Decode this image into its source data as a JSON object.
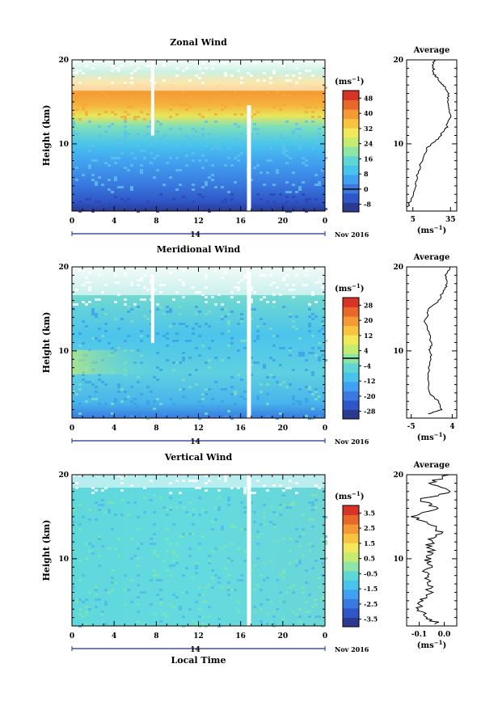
{
  "chart_data": [
    {
      "type": "heatmap",
      "title": "Zonal Wind",
      "xlabel": "",
      "ylabel": "Height (km)",
      "x_ticks": [
        "0",
        "4",
        "8",
        "12",
        "16",
        "20",
        "0"
      ],
      "x_range": [
        0,
        24
      ],
      "y_ticks": [
        "10",
        "20"
      ],
      "y_range": [
        2,
        20
      ],
      "date_day": "14",
      "date_month": "Nov 2016",
      "colorbar_unit": "(ms",
      "colorbar_unit_exp": "−1",
      "colorbar_unit_close": ")",
      "colorbar_ticks": [
        "48",
        "40",
        "32",
        "24",
        "16",
        "8",
        "0",
        "-8"
      ],
      "colorbar_range": [
        -12,
        52
      ],
      "colorbar_colors": [
        "#2b3a8f",
        "#2f55c6",
        "#3a7ae0",
        "#41a0ef",
        "#48c4ec",
        "#5fd6d6",
        "#8ee5a6",
        "#c5ec70",
        "#f2e85a",
        "#f8c440",
        "#f39a34",
        "#e8672b",
        "#d83327"
      ],
      "profile_title": "Average",
      "profile_xticks": [
        "5",
        "35"
      ],
      "profile_xrange": [
        0,
        40
      ],
      "profile_xlabel": "(ms",
      "profile_xlabel_exp": "−1",
      "profile_xlabel_close": ")",
      "profile_points": [
        [
          1,
          2.5
        ],
        [
          4,
          3.5
        ],
        [
          7,
          5
        ],
        [
          9,
          6.5
        ],
        [
          12,
          8
        ],
        [
          16,
          9.5
        ],
        [
          23,
          10.3
        ],
        [
          28,
          11.2
        ],
        [
          32,
          12
        ],
        [
          35,
          13.5
        ],
        [
          33,
          15
        ],
        [
          33,
          16
        ],
        [
          30,
          16.8
        ],
        [
          26,
          17.5
        ],
        [
          22,
          18.3
        ],
        [
          21,
          19.2
        ],
        [
          22,
          20
        ]
      ]
    },
    {
      "type": "heatmap",
      "title": "Meridional Wind",
      "xlabel": "",
      "ylabel": "Height (km)",
      "x_ticks": [
        "0",
        "4",
        "8",
        "12",
        "16",
        "20",
        "0"
      ],
      "x_range": [
        0,
        24
      ],
      "y_ticks": [
        "10",
        "20"
      ],
      "y_range": [
        2,
        20
      ],
      "date_day": "14",
      "date_month": "Nov 2016",
      "colorbar_unit": "(ms",
      "colorbar_unit_exp": "−1",
      "colorbar_unit_close": ")",
      "colorbar_ticks": [
        "28",
        "20",
        "12",
        "4",
        "-4",
        "-12",
        "-20",
        "-28"
      ],
      "colorbar_range": [
        -32,
        32
      ],
      "colorbar_colors": [
        "#2b3a8f",
        "#2f55c6",
        "#3a7ae0",
        "#41a0ef",
        "#48c4ec",
        "#5fd6d6",
        "#8ee5a6",
        "#c5ec70",
        "#f2e85a",
        "#f8c440",
        "#f39a34",
        "#e8672b",
        "#d83327"
      ],
      "profile_title": "Average",
      "profile_xticks": [
        "-5",
        "4"
      ],
      "profile_xrange": [
        -6,
        5
      ],
      "profile_xlabel": "(ms",
      "profile_xlabel_exp": "−1",
      "profile_xlabel_close": ")",
      "profile_points": [
        [
          -1,
          2.5
        ],
        [
          1.5,
          3
        ],
        [
          1,
          4
        ],
        [
          -1,
          5
        ],
        [
          -1.5,
          7
        ],
        [
          -0.5,
          9
        ],
        [
          -1,
          10
        ],
        [
          -0.5,
          11
        ],
        [
          -1,
          12
        ],
        [
          -2,
          13.5
        ],
        [
          -1,
          15
        ],
        [
          1,
          16
        ],
        [
          2,
          17
        ],
        [
          3,
          18
        ],
        [
          2.5,
          19
        ],
        [
          3.5,
          20
        ]
      ]
    },
    {
      "type": "heatmap",
      "title": "Vertical Wind",
      "xlabel": "Local Time",
      "ylabel": "Height (km)",
      "x_ticks": [
        "0",
        "4",
        "8",
        "12",
        "16",
        "20",
        "0"
      ],
      "x_range": [
        0,
        24
      ],
      "y_ticks": [
        "10",
        "20"
      ],
      "y_range": [
        2,
        20
      ],
      "date_day": "14",
      "date_month": "Nov 2016",
      "colorbar_unit": "(ms",
      "colorbar_unit_exp": "−1",
      "colorbar_unit_close": ")",
      "colorbar_ticks": [
        "3.5",
        "2.5",
        "1.5",
        "0.5",
        "-0.5",
        "-1.5",
        "-2.5",
        "-3.5"
      ],
      "colorbar_range": [
        -4,
        4
      ],
      "colorbar_colors": [
        "#2b3a8f",
        "#2f55c6",
        "#3a7ae0",
        "#41a0ef",
        "#48c4ec",
        "#5fd6d6",
        "#8ee5a6",
        "#c5ec70",
        "#f2e85a",
        "#f8c440",
        "#f39a34",
        "#e8672b",
        "#d83327"
      ],
      "profile_title": "Average",
      "profile_xticks": [
        "-0.1",
        "0.0"
      ],
      "profile_xrange": [
        -0.15,
        0.05
      ],
      "profile_xlabel": "(ms",
      "profile_xlabel_exp": "−1",
      "profile_xlabel_close": ")",
      "profile_points": [
        [
          -0.02,
          2.2
        ],
        [
          -0.07,
          3
        ],
        [
          -0.1,
          4
        ],
        [
          -0.09,
          5
        ],
        [
          -0.06,
          6
        ],
        [
          -0.05,
          7
        ],
        [
          -0.08,
          8
        ],
        [
          -0.06,
          9
        ],
        [
          -0.07,
          10
        ],
        [
          -0.05,
          11
        ],
        [
          -0.06,
          12
        ],
        [
          -0.02,
          13
        ],
        [
          -0.04,
          14
        ],
        [
          -0.12,
          15
        ],
        [
          -0.03,
          16
        ],
        [
          -0.1,
          17
        ],
        [
          0.02,
          18
        ],
        [
          -0.06,
          19
        ],
        [
          0.02,
          20
        ]
      ]
    }
  ]
}
